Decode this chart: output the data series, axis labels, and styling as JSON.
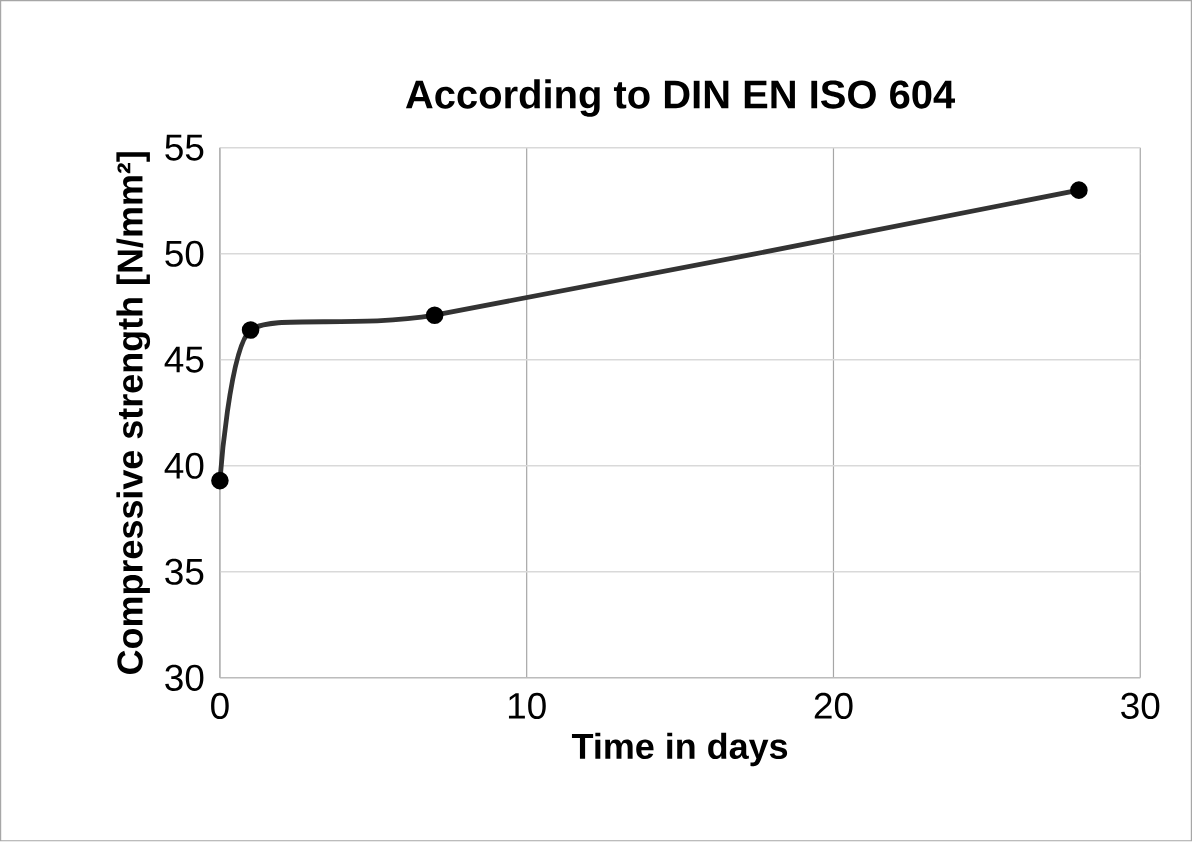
{
  "chart_data": {
    "type": "line",
    "title": "According to DIN EN ISO 604",
    "xlabel": "Time in days",
    "ylabel": "Compressive strength [N/mm²]",
    "x": [
      0,
      1,
      7,
      28
    ],
    "series": [
      {
        "color": "#333333",
        "values": [
          39.3,
          46.4,
          47.1,
          53.0
        ]
      }
    ],
    "xlim": [
      0,
      30
    ],
    "xticks": [
      0,
      10,
      20,
      30
    ],
    "ylim": [
      30,
      55
    ],
    "yticks": [
      30,
      35,
      40,
      45,
      50,
      55
    ],
    "grid": true,
    "marker": "circle",
    "line_style": "solid"
  }
}
